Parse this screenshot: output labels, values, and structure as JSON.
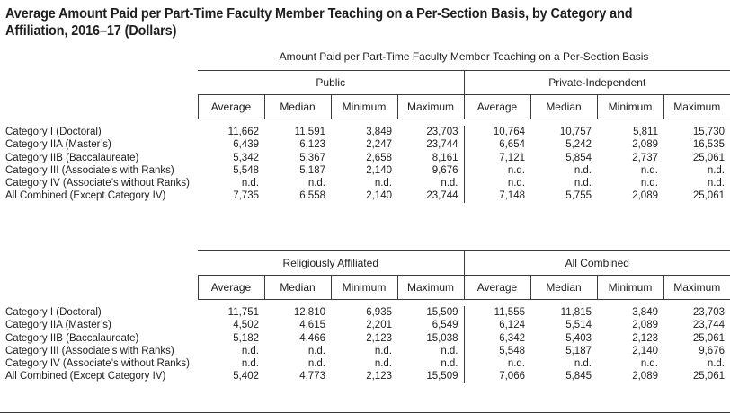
{
  "title": "Average Amount Paid per Part-Time Faculty Member Teaching on a Per-Section Basis, by Category and Affiliation, 2016–17 (Dollars)",
  "supertitle": "Amount Paid per Part-Time Faculty Member Teaching on a Per-Section Basis",
  "columns": [
    "Average",
    "Median",
    "Minimum",
    "Maximum"
  ],
  "row_labels": [
    "Category I (Doctoral)",
    "Category IIA (Master’s)",
    "Category IIB (Baccalaureate)",
    "Category III (Associate’s with Ranks)",
    "Category IV (Associate’s without Ranks)",
    "All Combined (Except Category IV)"
  ],
  "table_a": {
    "groups": [
      "Public",
      "Private-Independent"
    ],
    "rows": [
      [
        "11,662",
        "11,591",
        "3,849",
        "23,703",
        "10,764",
        "10,757",
        "5,811",
        "15,730"
      ],
      [
        "6,439",
        "6,123",
        "2,247",
        "23,744",
        "6,654",
        "5,242",
        "2,089",
        "16,535"
      ],
      [
        "5,342",
        "5,367",
        "2,658",
        "8,161",
        "7,121",
        "5,854",
        "2,737",
        "25,061"
      ],
      [
        "5,548",
        "5,187",
        "2,140",
        "9,676",
        "n.d.",
        "n.d.",
        "n.d.",
        "n.d."
      ],
      [
        "n.d.",
        "n.d.",
        "n.d.",
        "n.d.",
        "n.d.",
        "n.d.",
        "n.d.",
        "n.d."
      ],
      [
        "7,735",
        "6,558",
        "2,140",
        "23,744",
        "7,148",
        "5,755",
        "2,089",
        "25,061"
      ]
    ]
  },
  "table_b": {
    "groups": [
      "Religiously Affiliated",
      "All Combined"
    ],
    "rows": [
      [
        "11,751",
        "12,810",
        "6,935",
        "15,509",
        "11,555",
        "11,815",
        "3,849",
        "23,703"
      ],
      [
        "4,502",
        "4,615",
        "2,201",
        "6,549",
        "6,124",
        "5,514",
        "2,089",
        "23,744"
      ],
      [
        "5,182",
        "4,466",
        "2,123",
        "15,038",
        "6,342",
        "5,403",
        "2,123",
        "25,061"
      ],
      [
        "n.d.",
        "n.d.",
        "n.d.",
        "n.d.",
        "5,548",
        "5,187",
        "2,140",
        "9,676"
      ],
      [
        "n.d.",
        "n.d.",
        "n.d.",
        "n.d.",
        "n.d.",
        "n.d.",
        "n.d.",
        "n.d."
      ],
      [
        "5,402",
        "4,773",
        "2,123",
        "15,509",
        "7,066",
        "5,845",
        "2,089",
        "25,061"
      ]
    ]
  }
}
